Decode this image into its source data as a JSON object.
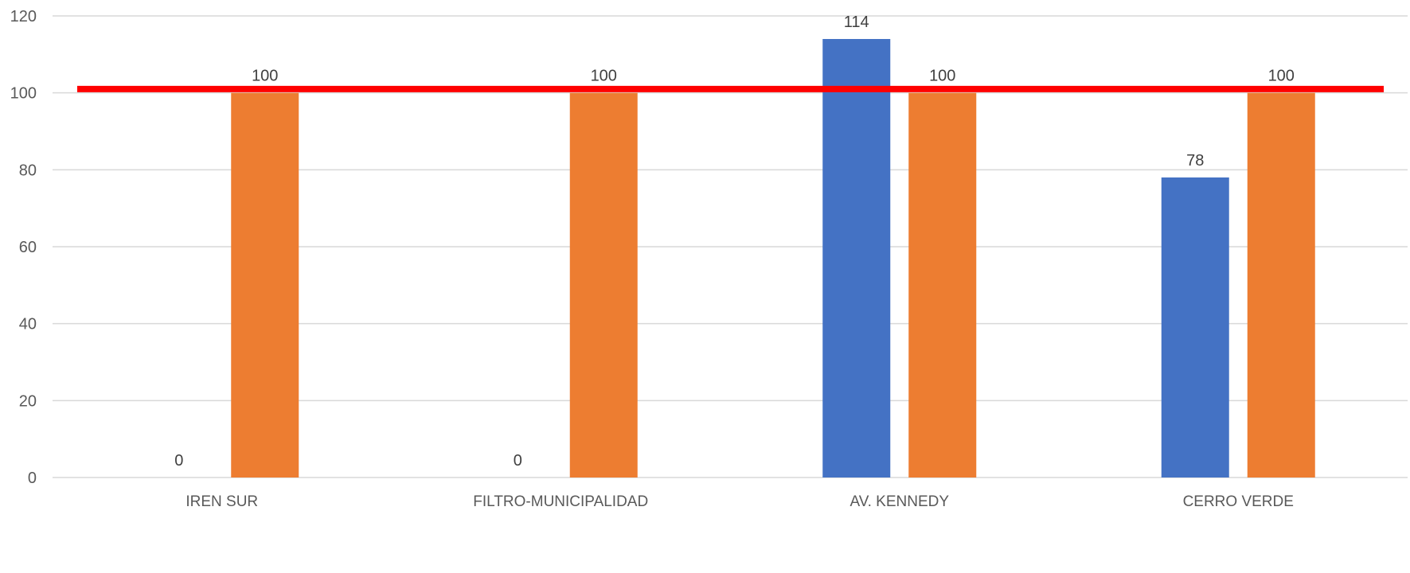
{
  "chart_data": {
    "type": "bar",
    "categories": [
      "IREN SUR",
      "FILTRO-MUNICIPALIDAD",
      "AV. KENNEDY",
      "CERRO VERDE"
    ],
    "series": [
      {
        "values": [
          0,
          0,
          114,
          78
        ],
        "color": "#4472C4"
      },
      {
        "values": [
          100,
          100,
          100,
          100
        ],
        "color": "#ED7D31"
      }
    ],
    "reference_line": {
      "value": 101,
      "color": "#FF0000"
    },
    "ylim": [
      0,
      120
    ],
    "yticks": [
      0,
      20,
      40,
      60,
      80,
      100,
      120
    ],
    "grid": true,
    "legend": "none",
    "data_labels": true,
    "title": "",
    "xlabel": "",
    "ylabel": ""
  }
}
